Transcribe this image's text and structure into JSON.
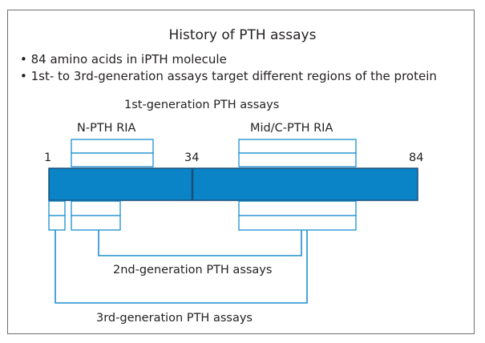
{
  "title": "History of PTH assays",
  "bullets": [
    "• 84 amino acids in iPTH molecule",
    "• 1st- to 3rd-generation assays target different regions of the protein"
  ],
  "labels": {
    "gen1": "1st-generation PTH assays",
    "n_pth": "N-PTH RIA",
    "mid_c": "Mid/C-PTH RIA",
    "gen2": "2nd-generation PTH assays",
    "gen3": "3rd-generation PTH assays"
  },
  "positions": {
    "start": "1",
    "mid": "34",
    "end": "84"
  },
  "colors": {
    "bar_fill": "#0a84c6",
    "bar_stroke": "#1a4f78",
    "line": "#1b8fcf",
    "frame": "#6d6e70"
  }
}
